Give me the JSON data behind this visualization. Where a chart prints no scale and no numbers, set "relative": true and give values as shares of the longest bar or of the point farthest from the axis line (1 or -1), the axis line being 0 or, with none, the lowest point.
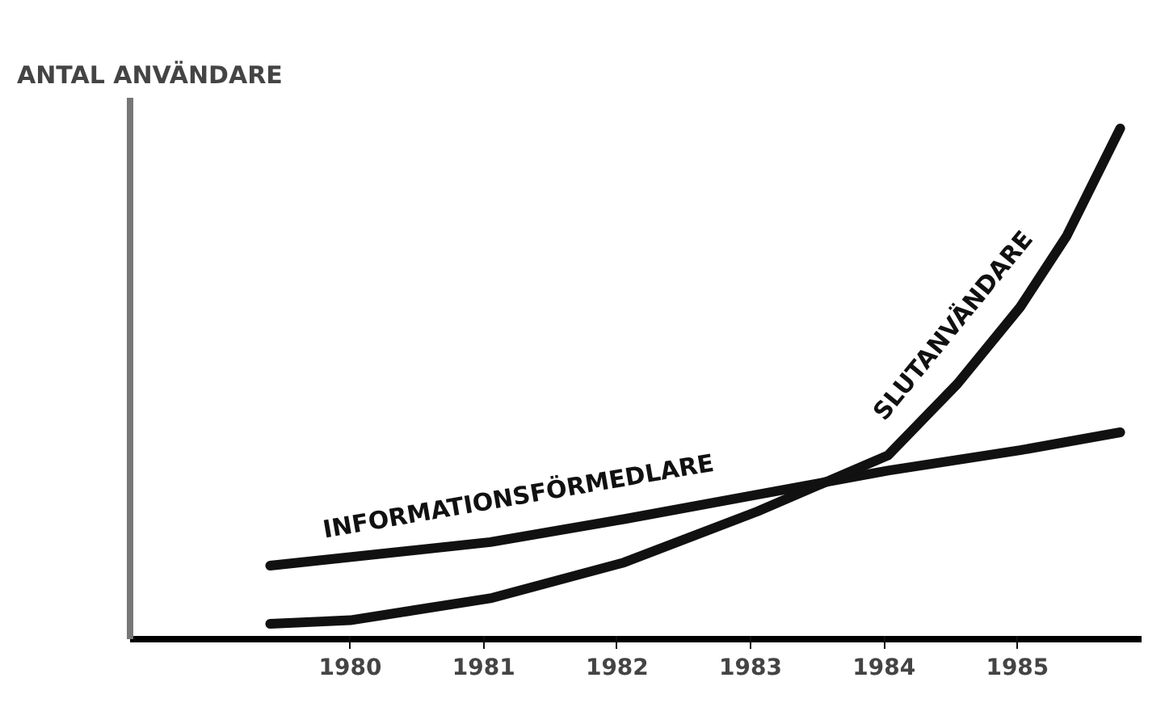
{
  "chart_data": {
    "type": "line",
    "ylabel": "ANTAL ANVÄNDARE",
    "relative": true,
    "xlim": [
      1978.35,
      1985.93
    ],
    "xticks": [
      1980,
      1981,
      1982,
      1983,
      1984,
      1985
    ],
    "grid": false,
    "marker": "none",
    "line_style": "solid",
    "series": [
      {
        "name": "INFORMATIONSFÖRMEDLARE",
        "color": "#111111",
        "x": [
          1979.4,
          1981.05,
          1982.05,
          1983.05,
          1984.03,
          1985.02,
          1985.77
        ],
        "values": [
          0.144,
          0.19,
          0.235,
          0.283,
          0.33,
          0.37,
          0.405
        ]
      },
      {
        "name": "SLUTANVÄNDARE",
        "color": "#111111",
        "x": [
          1979.4,
          1980.0,
          1981.05,
          1982.05,
          1983.05,
          1984.03,
          1984.55,
          1985.02,
          1985.37,
          1985.77
        ],
        "values": [
          0.03,
          0.037,
          0.08,
          0.15,
          0.25,
          0.36,
          0.5,
          0.65,
          0.79,
          1.0
        ]
      }
    ]
  }
}
